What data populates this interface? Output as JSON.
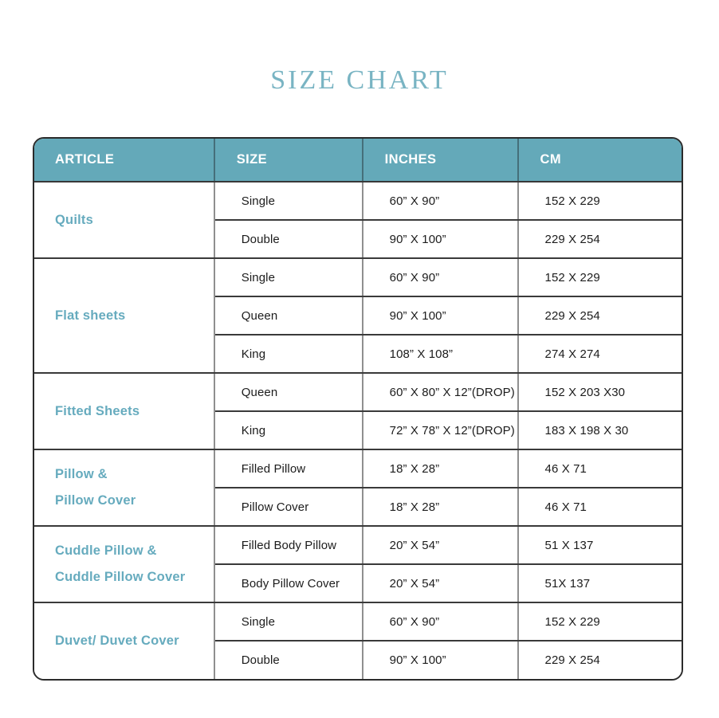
{
  "title": "SIZE CHART",
  "colors": {
    "title_text": "#79b4c3",
    "header_bg": "#64a9b9",
    "header_text": "#ffffff",
    "article_text": "#66abbe",
    "cell_text": "#1c1c1c",
    "outer_border": "#2b2b2b",
    "vertical_divider": "#8f8f8f",
    "horizontal_divider": "#3a3a3a"
  },
  "table": {
    "headers": [
      "ARTICLE",
      "SIZE",
      "INCHES",
      "CM"
    ],
    "sections": [
      {
        "article": [
          "Quilts"
        ],
        "rows": [
          {
            "size": "Single",
            "inches": "60” X 90”",
            "cm": "152 X 229"
          },
          {
            "size": "Double",
            "inches": "90” X 100”",
            "cm": "229 X 254"
          }
        ]
      },
      {
        "article": [
          "Flat sheets"
        ],
        "rows": [
          {
            "size": "Single",
            "inches": "60” X 90”",
            "cm": "152 X 229"
          },
          {
            "size": "Queen",
            "inches": "90” X 100”",
            "cm": "229 X 254"
          },
          {
            "size": "King",
            "inches": "108” X 108”",
            "cm": "274 X 274"
          }
        ]
      },
      {
        "article": [
          "Fitted Sheets"
        ],
        "rows": [
          {
            "size": "Queen",
            "inches": "60” X 80” X 12”(DROP)",
            "cm": "152 X 203 X30"
          },
          {
            "size": "King",
            "inches": "72” X 78” X 12”(DROP)",
            "cm": "183 X 198 X 30"
          }
        ]
      },
      {
        "article": [
          "Pillow &",
          "Pillow Cover"
        ],
        "rows": [
          {
            "size": "Filled Pillow",
            "inches": "18” X 28”",
            "cm": "46 X 71"
          },
          {
            "size": "Pillow Cover",
            "inches": "18” X 28”",
            "cm": "46 X 71"
          }
        ]
      },
      {
        "article": [
          "Cuddle Pillow &",
          "Cuddle Pillow Cover"
        ],
        "rows": [
          {
            "size": "Filled Body Pillow",
            "inches": "20” X 54”",
            "cm": "51 X 137"
          },
          {
            "size": "Body Pillow Cover",
            "inches": "20” X 54”",
            "cm": "51X 137"
          }
        ]
      },
      {
        "article": [
          "Duvet/ Duvet Cover"
        ],
        "rows": [
          {
            "size": "Single",
            "inches": "60” X 90”",
            "cm": "152 X 229"
          },
          {
            "size": "Double",
            "inches": "90” X 100”",
            "cm": "229 X 254"
          }
        ]
      }
    ]
  }
}
